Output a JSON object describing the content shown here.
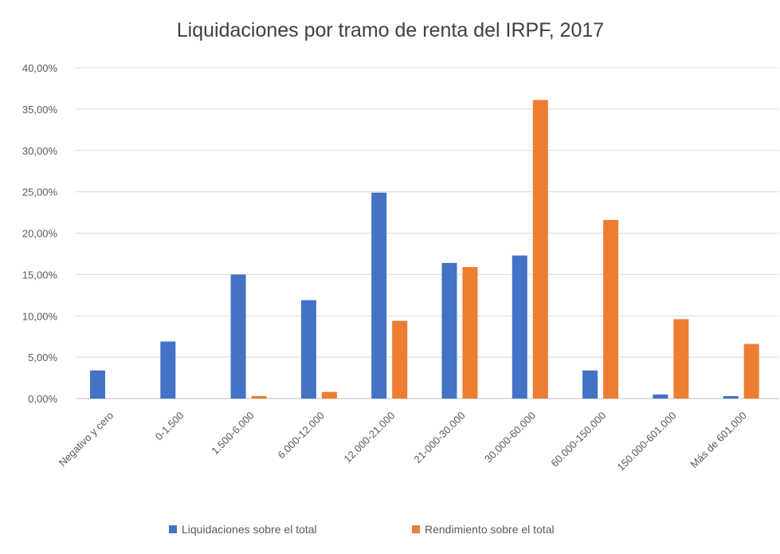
{
  "chart_data": {
    "type": "bar",
    "title": "Liquidaciones por tramo de renta del IRPF, 2017",
    "xlabel": "",
    "ylabel": "",
    "ylim": [
      0,
      40
    ],
    "ytick_labels": [
      "0,00%",
      "5,00%",
      "10,00%",
      "15,00%",
      "20,00%",
      "25,00%",
      "30,00%",
      "35,00%",
      "40,00%"
    ],
    "grid": true,
    "legend_position": "bottom",
    "categories": [
      "Negativo y cero",
      "0-1.500",
      "1.500-6.000",
      "6.000-12.000",
      "12.000-21.000",
      "21-000-30.000",
      "30.000-60.000",
      "60.000-150.000",
      "150.000-601.000",
      "Más de 601.000"
    ],
    "series": [
      {
        "name": "Liquidaciones sobre el total",
        "color": "#4472C4",
        "values": [
          3.4,
          6.9,
          15.0,
          11.9,
          24.9,
          16.4,
          17.3,
          3.4,
          0.5,
          0.3
        ]
      },
      {
        "name": "Rendimiento sobre el total",
        "color": "#ED7D31",
        "values": [
          0,
          0,
          0.3,
          0.8,
          9.4,
          15.9,
          36.1,
          21.6,
          9.6,
          6.6
        ]
      }
    ]
  }
}
